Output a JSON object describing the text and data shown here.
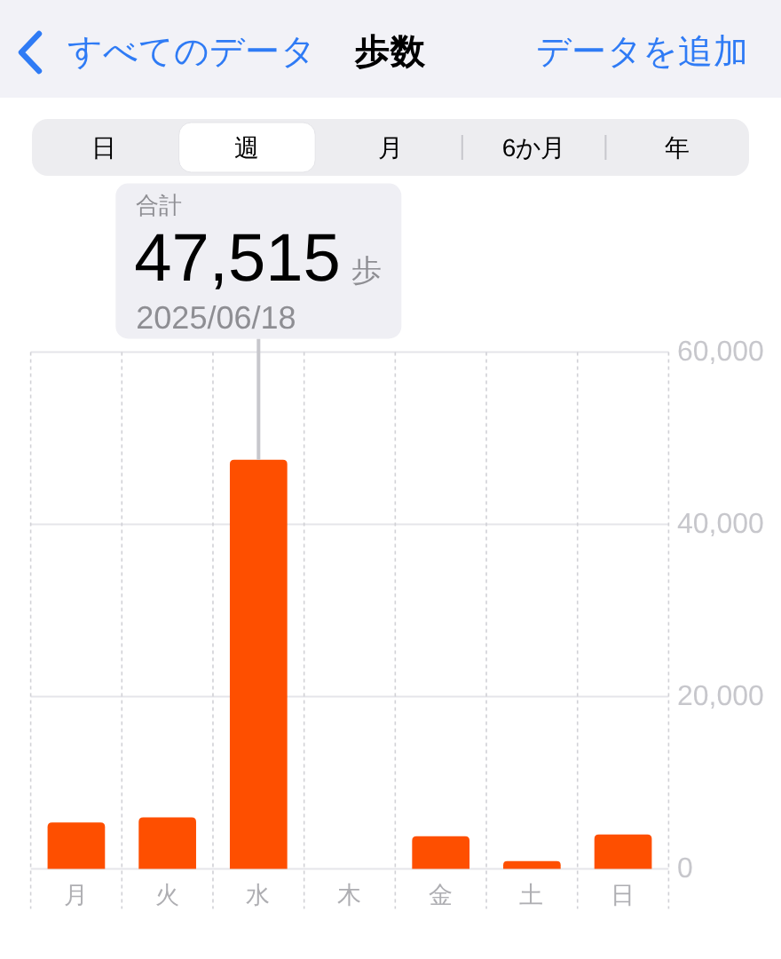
{
  "chart_data": {
    "type": "bar",
    "title": "歩数",
    "categories": [
      "月",
      "火",
      "水",
      "木",
      "金",
      "土",
      "日"
    ],
    "values": [
      5400,
      6000,
      47515,
      null,
      3800,
      900,
      4000
    ],
    "value_labels": [
      null,
      null,
      "47,515",
      null,
      null,
      null,
      null
    ],
    "color": "#fe4f00",
    "ylim": [
      0,
      60000
    ],
    "yticks": [
      0,
      {
        "value": 20000,
        "label": "20,000"
      },
      {
        "value": 40000,
        "label": "40,000"
      },
      {
        "value": 60000,
        "label": "60,000"
      }
    ],
    "grid": true,
    "annotations": [
      "すべてのデータ",
      "データを追加",
      "日",
      "週",
      "月",
      "6か月",
      "年",
      "合計",
      "歩",
      {
        "text": "2025/06/18",
        "x": "水",
        "y": 47515
      }
    ]
  }
}
